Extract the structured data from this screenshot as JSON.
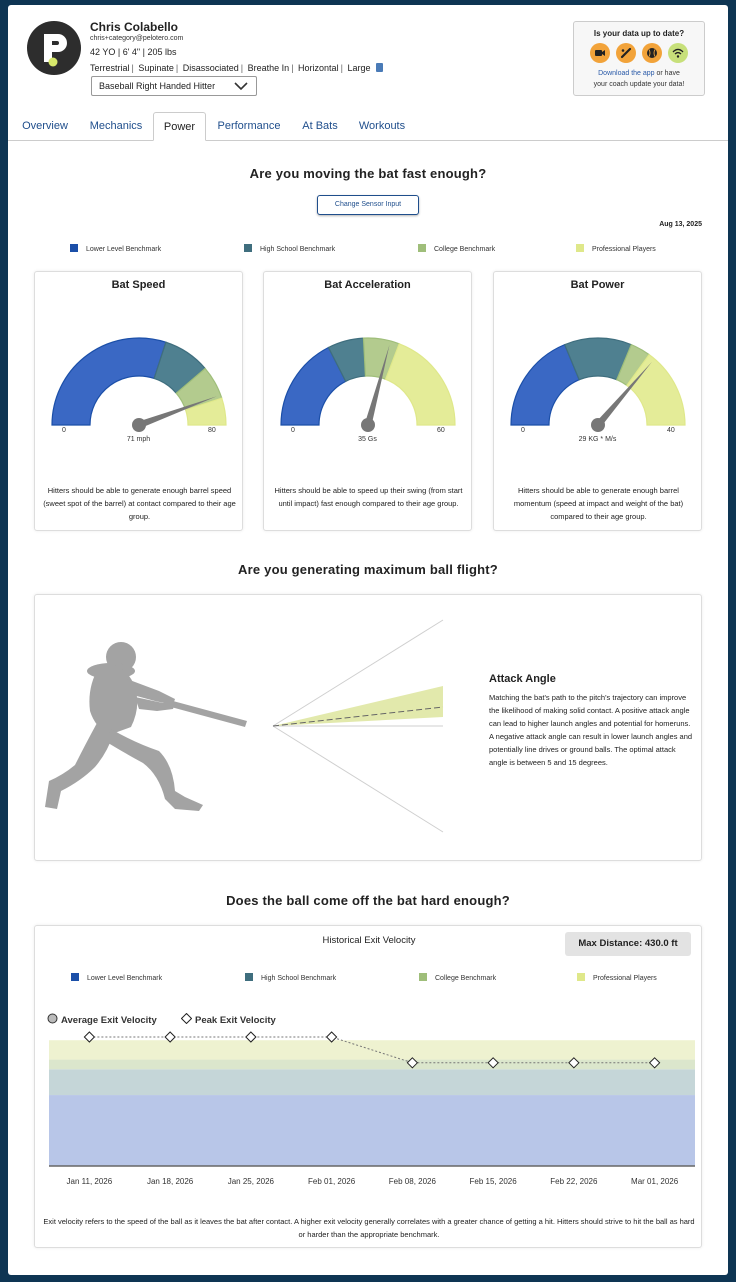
{
  "header": {
    "name": "Chris Colabello",
    "email": "chris+category@pelotero.com",
    "stats": "42 YO | 6' 4\" | 205 lbs",
    "traits": [
      "Terrestrial",
      "Supinate",
      "Disassociated",
      "Breathe In",
      "Horizontal",
      "Large"
    ],
    "profile": "Baseball Right Handed Hitter"
  },
  "update_box": {
    "title": "Is your data up to date?",
    "link": "Download the app",
    "text_after_link": " or have",
    "line2": "your coach update your data!",
    "icons": [
      "video-icon",
      "bat-icon",
      "ball-icon",
      "wifi-icon"
    ]
  },
  "tabs": [
    {
      "label": "Overview",
      "active": false
    },
    {
      "label": "Mechanics",
      "active": false
    },
    {
      "label": "Power",
      "active": true
    },
    {
      "label": "Performance",
      "active": false
    },
    {
      "label": "At Bats",
      "active": false
    },
    {
      "label": "Workouts",
      "active": false
    }
  ],
  "power": {
    "heading": "Are you moving the bat fast enough?",
    "sensor_button": "Change Sensor Input",
    "date": "Aug 13, 2025"
  },
  "legend": [
    {
      "label": "Lower Level Benchmark",
      "color": "#1b4fa8"
    },
    {
      "label": "High School Benchmark",
      "color": "#3f6e7e"
    },
    {
      "label": "College Benchmark",
      "color": "#9fbe7a"
    },
    {
      "label": "Professional Players",
      "color": "#dfe88a"
    }
  ],
  "gauges": [
    {
      "title": "Bat Speed",
      "min": "0",
      "max": "80",
      "value": 71,
      "value_label": "71 mph",
      "bands": [
        [
          0,
          48
        ],
        [
          48,
          62
        ],
        [
          62,
          72
        ],
        [
          72,
          80
        ]
      ],
      "description": "Hitters should be able to generate enough barrel speed (sweet spot of the barrel) at contact compared to their age group."
    },
    {
      "title": "Bat Acceleration",
      "min": "0",
      "max": "60",
      "value": 35,
      "value_label": "35 Gs",
      "bands": [
        [
          0,
          21
        ],
        [
          21,
          29
        ],
        [
          29,
          37
        ],
        [
          37,
          60
        ]
      ],
      "description": "Hitters should be able to speed up their swing (from start until impact) fast enough compared to their age group."
    },
    {
      "title": "Bat Power",
      "min": "0",
      "max": "40",
      "value": 29,
      "value_label": "29 KG * M/s",
      "bands": [
        [
          0,
          15
        ],
        [
          15,
          25
        ],
        [
          25,
          28
        ],
        [
          28,
          40
        ]
      ],
      "description": "Hitters should be able to generate enough barrel momentum (speed at impact and weight of the bat) compared to their age group."
    }
  ],
  "ball_flight": {
    "heading": "Are you generating maximum ball flight?",
    "title": "Attack Angle",
    "description": "Matching the bat's path to the pitch's trajectory can improve the likelihood of making solid contact. A positive attack angle can lead to higher launch angles and potential for homeruns. A negative attack angle can result in lower launch angles and potentially line drives or ground balls. The optimal attack angle is between 5 and 15 degrees."
  },
  "exit_velocity": {
    "heading": "Does the ball come off the bat hard enough?",
    "chart_title": "Historical Exit Velocity",
    "max_distance": "Max Distance: 430.0 ft",
    "key_average": "Average Exit Velocity",
    "key_peak": "Peak Exit Velocity",
    "description": "Exit velocity refers to the speed of the ball as it leaves the bat after contact. A higher exit velocity generally correlates with a greater chance of getting a hit. Hitters should strive to hit the ball as hard or harder than the appropriate benchmark."
  },
  "chart_data": {
    "type": "line",
    "title": "Historical Exit Velocity",
    "categories": [
      "Jan 11, 2026",
      "Jan 18, 2026",
      "Jan 25, 2026",
      "Feb 01, 2026",
      "Feb 08, 2026",
      "Feb 15, 2026",
      "Feb 22, 2026",
      "Mar 01, 2026"
    ],
    "series": [
      {
        "name": "Peak Exit Velocity",
        "values": [
          100,
          100,
          100,
          100,
          92,
          92,
          92,
          92
        ]
      }
    ],
    "benchmark_bands": [
      {
        "name": "Lower Level Benchmark",
        "from": 60,
        "to": 82
      },
      {
        "name": "High School Benchmark",
        "from": 82,
        "to": 90
      },
      {
        "name": "College Benchmark",
        "from": 90,
        "to": 93
      },
      {
        "name": "Professional Players",
        "from": 93,
        "to": 99
      }
    ],
    "ylim": [
      60,
      100
    ],
    "xlabel": "",
    "ylabel": ""
  }
}
